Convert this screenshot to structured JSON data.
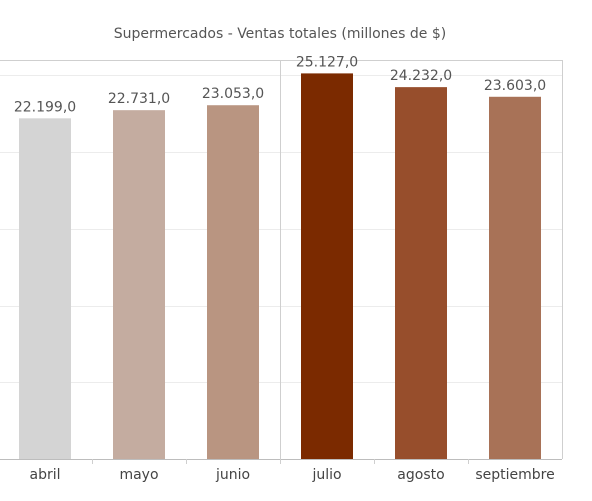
{
  "chart_data": {
    "type": "bar",
    "title": "Supermercados - Ventas totales (millones de $)",
    "categories": [
      "abril",
      "mayo",
      "junio",
      "julio",
      "agosto",
      "septiembre"
    ],
    "values": [
      22199.0,
      22731.0,
      23053.0,
      25127.0,
      24232.0,
      23603.0
    ],
    "value_labels": [
      "22.199,0",
      "22.731,0",
      "23.053,0",
      "25.127,0",
      "24.232,0",
      "23.603,0"
    ],
    "colors": [
      "#d4d4d4",
      "#c4aca0",
      "#b99581",
      "#7b2a00",
      "#974e2c",
      "#a87257"
    ],
    "xlabel": "",
    "ylabel": "",
    "ylim": [
      0,
      26000
    ],
    "grid": true,
    "legend": "none"
  }
}
